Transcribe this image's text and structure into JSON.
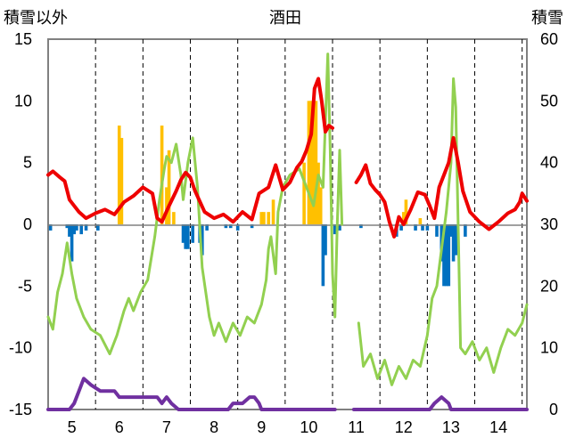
{
  "chart_data": {
    "type": "line",
    "title": "酒田",
    "ylabel_left": "積雪以外",
    "ylabel_right": "積雪",
    "x_ticks": [
      "5",
      "6",
      "7",
      "8",
      "9",
      "10",
      "11",
      "12",
      "13",
      "14"
    ],
    "y_left_ticks": [
      "15",
      "10",
      "5",
      "0",
      "-5",
      "-10",
      "-15"
    ],
    "y_right_ticks": [
      "60",
      "50",
      "40",
      "30",
      "20",
      "10",
      "0"
    ],
    "x_range": [
      4.5,
      14.6
    ],
    "y_left_range": [
      -15,
      15
    ],
    "y_right_range": [
      0,
      60
    ],
    "grid": "dashed vertical",
    "colors": {
      "red": "#ee0000",
      "green": "#92d050",
      "purple": "#7030a0",
      "orange": "#ffc000",
      "blue": "#0070c0",
      "grid": "#000000",
      "frame": "#808080"
    },
    "series": [
      {
        "color": "red",
        "axis": "left",
        "segments": [
          [
            [
              4.5,
              4.0
            ],
            [
              4.6,
              4.3
            ],
            [
              4.75,
              3.8
            ],
            [
              4.85,
              3.5
            ],
            [
              4.95,
              2.0
            ],
            [
              5.05,
              1.5
            ],
            [
              5.15,
              1.0
            ],
            [
              5.3,
              0.5
            ],
            [
              5.5,
              0.9
            ],
            [
              5.7,
              1.2
            ],
            [
              5.9,
              0.8
            ],
            [
              6.1,
              1.8
            ],
            [
              6.3,
              2.3
            ],
            [
              6.5,
              3.0
            ],
            [
              6.7,
              2.5
            ],
            [
              6.8,
              0.5
            ],
            [
              6.9,
              0.2
            ],
            [
              7.05,
              1.5
            ],
            [
              7.2,
              2.7
            ],
            [
              7.3,
              3.6
            ],
            [
              7.4,
              4.2
            ],
            [
              7.5,
              3.8
            ],
            [
              7.6,
              2.7
            ],
            [
              7.8,
              1.0
            ],
            [
              8.0,
              0.5
            ],
            [
              8.2,
              0.8
            ],
            [
              8.4,
              0.2
            ],
            [
              8.6,
              1.0
            ],
            [
              8.8,
              0.4
            ],
            [
              8.95,
              2.5
            ],
            [
              9.15,
              3.0
            ],
            [
              9.3,
              4.8
            ],
            [
              9.45,
              2.8
            ],
            [
              9.6,
              3.4
            ],
            [
              9.75,
              4.6
            ],
            [
              9.85,
              5.1
            ],
            [
              9.95,
              6.0
            ],
            [
              10.05,
              7.3
            ],
            [
              10.12,
              11.0
            ],
            [
              10.2,
              11.8
            ],
            [
              10.27,
              10.0
            ],
            [
              10.35,
              7.5
            ],
            [
              10.42,
              8.0
            ],
            [
              10.5,
              7.8
            ]
          ],
          [
            [
              11.0,
              3.4
            ],
            [
              11.1,
              4.0
            ],
            [
              11.2,
              4.8
            ],
            [
              11.3,
              3.3
            ],
            [
              11.4,
              2.8
            ],
            [
              11.5,
              2.4
            ],
            [
              11.6,
              1.8
            ],
            [
              11.7,
              0.2
            ],
            [
              11.8,
              -1.0
            ],
            [
              11.9,
              0.6
            ],
            [
              12.0,
              0.0
            ],
            [
              12.15,
              1.2
            ],
            [
              12.3,
              2.6
            ],
            [
              12.45,
              2.4
            ],
            [
              12.55,
              1.5
            ],
            [
              12.65,
              0.5
            ],
            [
              12.75,
              3.0
            ],
            [
              12.85,
              4.0
            ],
            [
              12.95,
              5.0
            ],
            [
              13.05,
              7.0
            ],
            [
              13.15,
              5.0
            ],
            [
              13.25,
              2.7
            ],
            [
              13.4,
              1.0
            ],
            [
              13.6,
              0.2
            ],
            [
              13.8,
              -0.4
            ],
            [
              14.0,
              0.2
            ],
            [
              14.2,
              0.9
            ],
            [
              14.35,
              1.2
            ],
            [
              14.45,
              1.8
            ],
            [
              14.5,
              2.5
            ],
            [
              14.6,
              1.9
            ]
          ]
        ]
      },
      {
        "color": "green",
        "axis": "left",
        "segments": [
          [
            [
              4.5,
              -7.5
            ],
            [
              4.6,
              -8.5
            ],
            [
              4.7,
              -5.5
            ],
            [
              4.8,
              -4.0
            ],
            [
              4.9,
              -1.5
            ],
            [
              5.0,
              -4.0
            ],
            [
              5.1,
              -6.0
            ],
            [
              5.25,
              -7.5
            ],
            [
              5.4,
              -8.5
            ],
            [
              5.6,
              -9.0
            ],
            [
              5.8,
              -10.5
            ],
            [
              5.95,
              -9.0
            ],
            [
              6.1,
              -7.0
            ],
            [
              6.2,
              -6.0
            ],
            [
              6.3,
              -7.0
            ],
            [
              6.45,
              -5.5
            ],
            [
              6.6,
              -4.5
            ],
            [
              6.75,
              -1.0
            ],
            [
              6.85,
              2.0
            ],
            [
              6.95,
              4.5
            ],
            [
              7.0,
              5.5
            ],
            [
              7.1,
              5.0
            ],
            [
              7.2,
              6.5
            ],
            [
              7.3,
              4.0
            ],
            [
              7.35,
              2.0
            ],
            [
              7.45,
              5.0
            ],
            [
              7.55,
              7.0
            ],
            [
              7.65,
              3.0
            ],
            [
              7.75,
              -3.5
            ],
            [
              7.9,
              -7.5
            ],
            [
              8.0,
              -9.0
            ],
            [
              8.1,
              -8.0
            ],
            [
              8.25,
              -9.5
            ],
            [
              8.4,
              -8.0
            ],
            [
              8.55,
              -9.0
            ],
            [
              8.7,
              -7.5
            ],
            [
              8.85,
              -8.0
            ],
            [
              9.0,
              -6.5
            ],
            [
              9.1,
              -4.5
            ],
            [
              9.15,
              -2.0
            ],
            [
              9.2,
              -1.0
            ],
            [
              9.3,
              -4.0
            ],
            [
              9.35,
              1.0
            ],
            [
              9.45,
              3.0
            ],
            [
              9.6,
              4.0
            ],
            [
              9.8,
              4.5
            ],
            [
              9.95,
              3.0
            ],
            [
              10.1,
              1.5
            ],
            [
              10.2,
              4.0
            ],
            [
              10.3,
              3.0
            ],
            [
              10.4,
              13.8
            ],
            [
              10.45,
              6.0
            ],
            [
              10.5,
              -4.0
            ],
            [
              10.55,
              -7.5
            ],
            [
              10.6,
              0.0
            ],
            [
              10.65,
              6.0
            ],
            [
              10.7,
              0.0
            ]
          ],
          [
            [
              11.05,
              -8.0
            ],
            [
              11.15,
              -11.5
            ],
            [
              11.3,
              -10.5
            ],
            [
              11.45,
              -12.5
            ],
            [
              11.6,
              -11.0
            ],
            [
              11.75,
              -13.0
            ],
            [
              11.9,
              -11.5
            ],
            [
              12.05,
              -12.5
            ],
            [
              12.2,
              -11.0
            ],
            [
              12.35,
              -11.5
            ],
            [
              12.5,
              -9.0
            ],
            [
              12.6,
              -6.0
            ],
            [
              12.7,
              -5.0
            ],
            [
              12.8,
              -2.0
            ],
            [
              12.9,
              1.0
            ],
            [
              13.0,
              5.0
            ],
            [
              13.05,
              11.8
            ],
            [
              13.1,
              9.5
            ],
            [
              13.15,
              0.0
            ],
            [
              13.2,
              -10.0
            ],
            [
              13.3,
              -10.5
            ],
            [
              13.45,
              -9.5
            ],
            [
              13.6,
              -11.0
            ],
            [
              13.75,
              -10.0
            ],
            [
              13.9,
              -12.0
            ],
            [
              14.05,
              -10.0
            ],
            [
              14.2,
              -8.5
            ],
            [
              14.35,
              -9.0
            ],
            [
              14.5,
              -8.0
            ],
            [
              14.6,
              -6.5
            ]
          ]
        ]
      },
      {
        "color": "purple",
        "axis": "right",
        "segments": [
          [
            [
              4.5,
              0
            ],
            [
              4.95,
              0
            ],
            [
              5.05,
              1
            ],
            [
              5.15,
              3
            ],
            [
              5.25,
              5
            ],
            [
              5.4,
              4
            ],
            [
              5.6,
              3
            ],
            [
              5.9,
              3
            ],
            [
              6.0,
              2
            ],
            [
              6.8,
              2
            ],
            [
              6.9,
              1
            ],
            [
              7.0,
              2
            ],
            [
              7.1,
              1
            ],
            [
              7.25,
              0
            ],
            [
              8.3,
              0
            ],
            [
              8.4,
              1
            ],
            [
              8.6,
              1
            ],
            [
              8.75,
              2
            ],
            [
              8.85,
              2
            ],
            [
              8.95,
              1
            ],
            [
              9.0,
              0
            ],
            [
              10.55,
              0
            ]
          ],
          [
            [
              10.95,
              0
            ],
            [
              12.55,
              0
            ],
            [
              12.65,
              1
            ],
            [
              12.8,
              2
            ],
            [
              12.95,
              1
            ],
            [
              13.0,
              0
            ],
            [
              13.2,
              0
            ],
            [
              14.6,
              0
            ]
          ]
        ]
      }
    ],
    "bars_orange": [
      [
        6.0,
        8.0
      ],
      [
        6.05,
        7.0
      ],
      [
        6.9,
        8.0
      ],
      [
        7.0,
        3.0
      ],
      [
        7.05,
        6.0
      ],
      [
        7.15,
        1.0
      ],
      [
        9.0,
        1.0
      ],
      [
        9.05,
        1.0
      ],
      [
        9.15,
        1.0
      ],
      [
        9.25,
        2.0
      ],
      [
        9.9,
        5.0
      ],
      [
        10.0,
        10.0
      ],
      [
        10.05,
        10.0
      ],
      [
        10.1,
        10.0
      ],
      [
        10.15,
        10.0
      ],
      [
        10.2,
        5.0
      ],
      [
        10.25,
        3.0
      ],
      [
        12.0,
        1.0
      ],
      [
        12.05,
        2.0
      ],
      [
        12.35,
        0.5
      ]
    ],
    "bars_blue": [
      [
        4.55,
        -0.5
      ],
      [
        4.9,
        -0.3
      ],
      [
        4.95,
        -1.0
      ],
      [
        5.0,
        -3.0
      ],
      [
        5.05,
        -0.8
      ],
      [
        5.1,
        -0.5
      ],
      [
        5.2,
        -0.8
      ],
      [
        5.3,
        -0.5
      ],
      [
        5.55,
        -0.5
      ],
      [
        7.35,
        -1.5
      ],
      [
        7.4,
        -2.0
      ],
      [
        7.45,
        -2.0
      ],
      [
        7.55,
        -1.5
      ],
      [
        7.7,
        -1.5
      ],
      [
        7.75,
        -2.5
      ],
      [
        7.85,
        -0.5
      ],
      [
        8.25,
        -0.3
      ],
      [
        8.35,
        -0.3
      ],
      [
        8.5,
        -0.5
      ],
      [
        8.8,
        -0.3
      ],
      [
        10.3,
        -5.0
      ],
      [
        10.35,
        -2.5
      ],
      [
        10.55,
        -0.8
      ],
      [
        10.65,
        -0.5
      ],
      [
        11.1,
        -0.3
      ],
      [
        11.85,
        -1.0
      ],
      [
        11.95,
        -0.5
      ],
      [
        12.25,
        -0.5
      ],
      [
        12.4,
        -0.5
      ],
      [
        12.5,
        -0.5
      ],
      [
        12.7,
        -1.0
      ],
      [
        12.8,
        -3.0
      ],
      [
        12.85,
        -5.0
      ],
      [
        12.9,
        -5.0
      ],
      [
        12.95,
        -5.0
      ],
      [
        13.0,
        -1.0
      ],
      [
        13.05,
        -3.0
      ],
      [
        13.1,
        -2.5
      ],
      [
        13.3,
        -1.0
      ]
    ]
  }
}
